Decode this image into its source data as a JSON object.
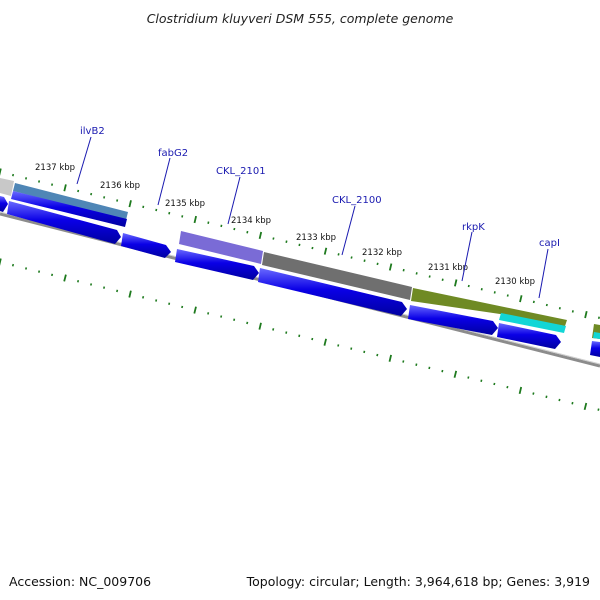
{
  "title": "Clostridium kluyveri DSM 555, complete genome",
  "footer": {
    "accession": "Accession: NC_009706",
    "topology": "Topology: circular; Length: 3,964,618 bp; Genes: 3,919"
  },
  "scale_labels": [
    "2137 kbp",
    "2136 kbp",
    "2135 kbp",
    "2134 kbp",
    "2133 kbp",
    "2132 kbp",
    "2131 kbp",
    "2130 kbp"
  ],
  "gene_labels": [
    "ilvB2",
    "fabG2",
    "CKL_2101",
    "CKL_2100",
    "rkpK",
    "capI"
  ],
  "colors": {
    "cds_blue": "#0a00e6",
    "tick_green": "#1e7a1e",
    "backbone": "#8c8c8c",
    "feature_steelblue": "#4f86b6",
    "feature_purple": "#7a6bd6",
    "feature_gray": "#6f6f6f",
    "feature_olive": "#6f8a24",
    "feature_cyan": "#12d6d6",
    "feature_lightgray": "#c8c8c8",
    "label_blue": "#1a1ab0"
  }
}
